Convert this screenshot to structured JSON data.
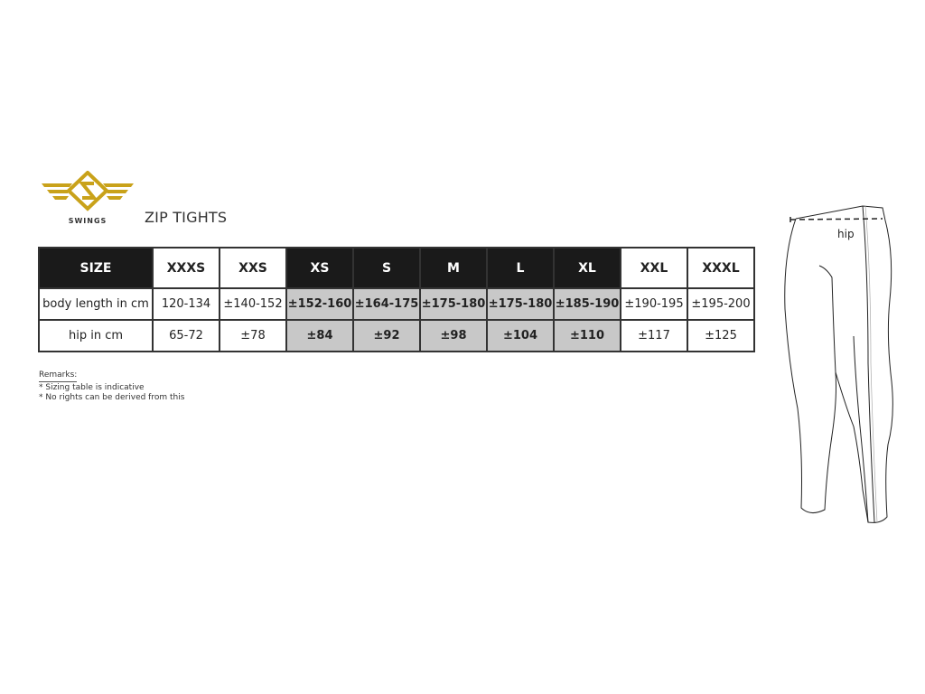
{
  "brand": {
    "name": "SWINGS",
    "color": "#c9a21a"
  },
  "title": "ZIP TIGHTS",
  "table": {
    "header_label": "SIZE",
    "sizes": [
      "XXXS",
      "XXS",
      "XS",
      "S",
      "M",
      "L",
      "XL",
      "XXL",
      "XXXL"
    ],
    "highlighted_sizes": [
      "XS",
      "S",
      "M",
      "L",
      "XL"
    ],
    "rows": [
      {
        "label": "body length in cm",
        "values": [
          "120-134",
          "±140-152",
          "±152-160",
          "±164-175",
          "±175-180",
          "±175-180",
          "±185-190",
          "±190-195",
          "±195-200"
        ]
      },
      {
        "label": "hip in cm",
        "values": [
          "65-72",
          "±78",
          "±84",
          "±92",
          "±98",
          "±104",
          "±110",
          "±117",
          "±125"
        ]
      }
    ]
  },
  "remarks": {
    "heading": "Remarks:",
    "items": [
      "* Sizing table is indicative",
      "* No rights can be derived from this"
    ]
  },
  "illustration": {
    "hip_label": "hip"
  }
}
